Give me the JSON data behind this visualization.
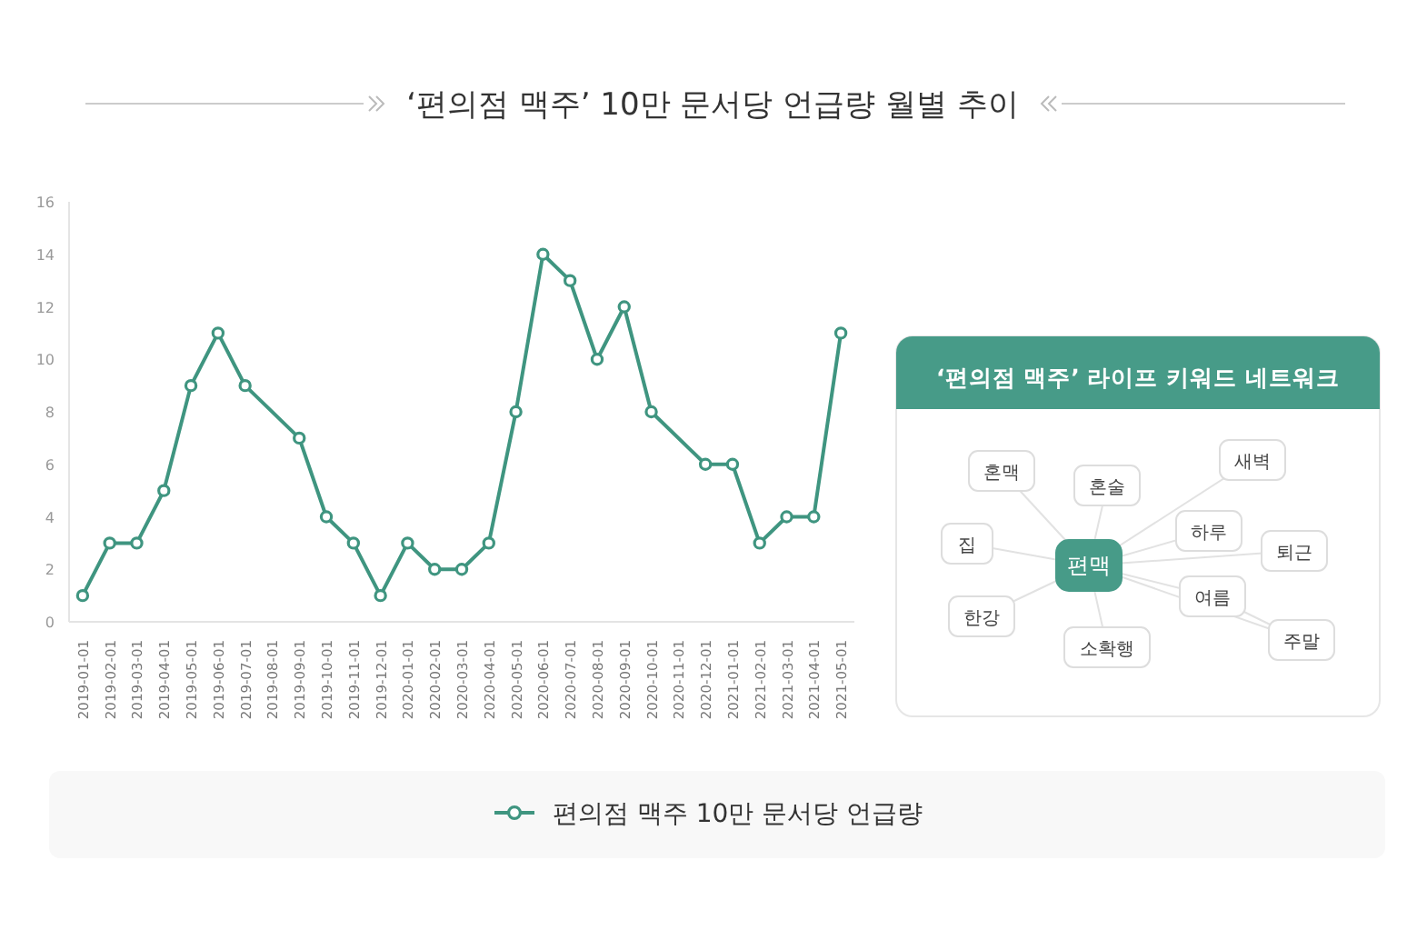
{
  "chart_data": [
    {
      "type": "line",
      "title": "‘편의점 맥주’ 10만 문서당 언급량 월별 추이",
      "categories": [
        "2019-01-01",
        "2019-02-01",
        "2019-03-01",
        "2019-04-01",
        "2019-05-01",
        "2019-06-01",
        "2019-07-01",
        "2019-08-01",
        "2019-09-01",
        "2019-10-01",
        "2019-11-01",
        "2019-12-01",
        "2020-01-01",
        "2020-02-01",
        "2020-03-01",
        "2020-04-01",
        "2020-05-01",
        "2020-06-01",
        "2020-07-01",
        "2020-08-01",
        "2020-09-01",
        "2020-10-01",
        "2020-11-01",
        "2020-12-01",
        "2021-01-01",
        "2021-02-01",
        "2021-03-01",
        "2021-04-01",
        "2021-05-01"
      ],
      "series": [
        {
          "name": "편의점 맥주 10만 문서당 언급량",
          "color": "#3f9580",
          "values": [
            1,
            3,
            3,
            5,
            9,
            11,
            9,
            null,
            7,
            4,
            3,
            1,
            3,
            2,
            2,
            3,
            8,
            14,
            13,
            10,
            12,
            8,
            null,
            6,
            6,
            3,
            4,
            4,
            11
          ]
        }
      ],
      "ylim": [
        0,
        16
      ],
      "yticks": [
        0,
        2,
        4,
        6,
        8,
        10,
        12,
        14,
        16
      ],
      "legend": "bottom",
      "marker": "circle",
      "grid": false
    },
    {
      "type": "other",
      "title": "‘편의점 맥주’ 라이프 키워드 네트워크",
      "annotations": [
        "편맥",
        "혼맥",
        "혼술",
        "새벽",
        "하루",
        "집",
        "퇴근",
        "여름",
        "한강",
        "주말",
        "소확행"
      ]
    }
  ]
}
